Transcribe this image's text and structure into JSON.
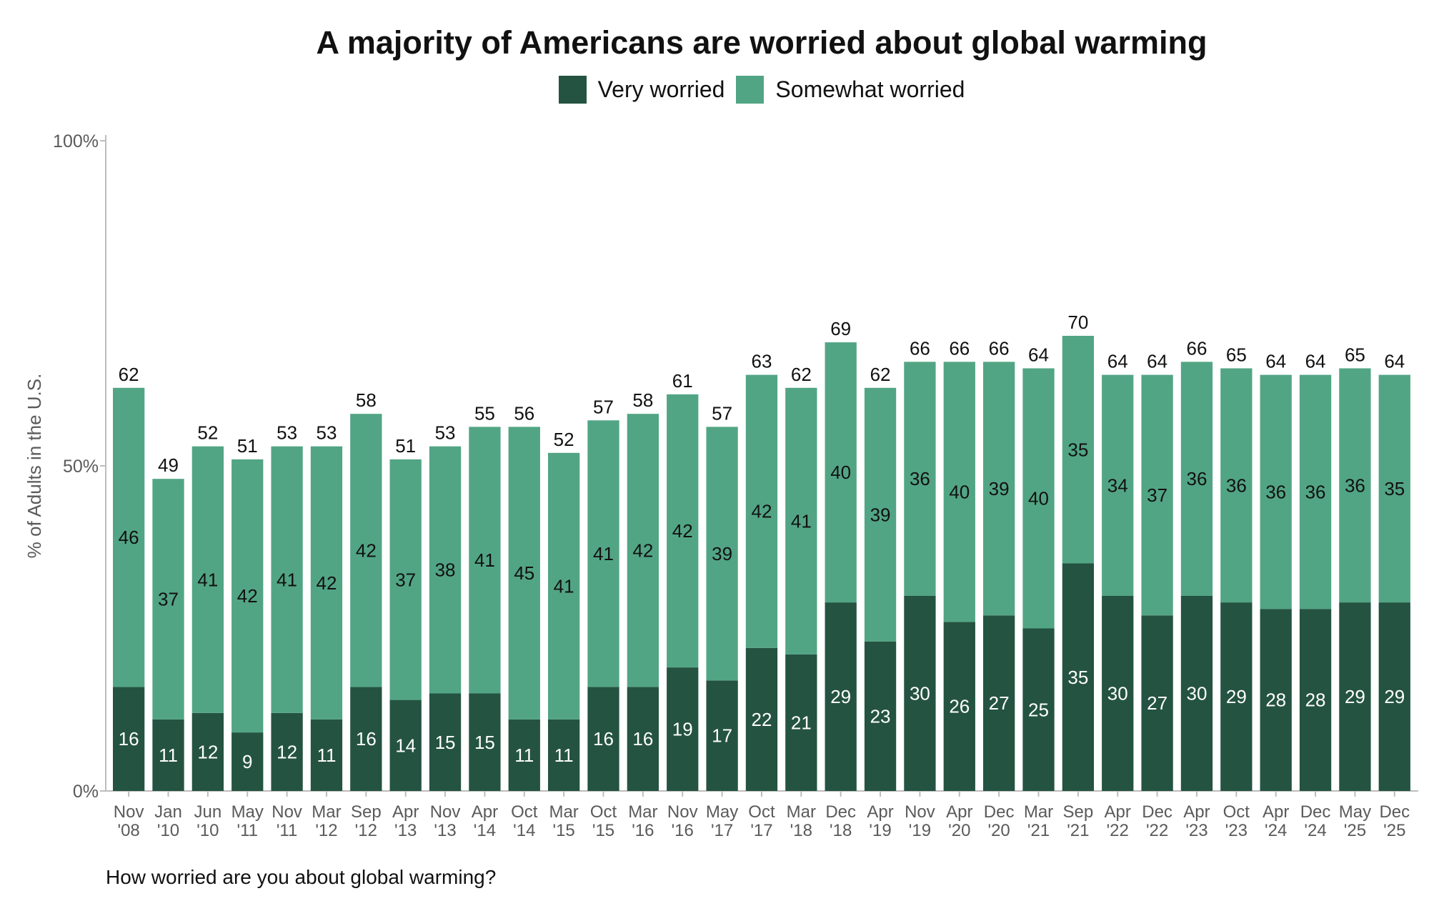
{
  "colors": {
    "very_worried": "#245342",
    "somewhat_worried": "#52a584",
    "axis": "#bdbdbd",
    "tick_text": "#5a5a5a"
  },
  "chart_data": {
    "type": "bar",
    "stacked": true,
    "title": "A majority of Americans are worried about global warming",
    "ylabel": "% of Adults in the U.S.",
    "ylim": [
      0,
      100
    ],
    "yticks": [
      "0%",
      "50%",
      "100%"
    ],
    "legend_position": "top-center",
    "grid": false,
    "footnote": "How worried are you about global warming?",
    "categories": [
      [
        "Nov",
        "'08"
      ],
      [
        "Jan",
        "'10"
      ],
      [
        "Jun",
        "'10"
      ],
      [
        "May",
        "'11"
      ],
      [
        "Nov",
        "'11"
      ],
      [
        "Mar",
        "'12"
      ],
      [
        "Sep",
        "'12"
      ],
      [
        "Apr",
        "'13"
      ],
      [
        "Nov",
        "'13"
      ],
      [
        "Apr",
        "'14"
      ],
      [
        "Oct",
        "'14"
      ],
      [
        "Mar",
        "'15"
      ],
      [
        "Oct",
        "'15"
      ],
      [
        "Mar",
        "'16"
      ],
      [
        "Nov",
        "'16"
      ],
      [
        "May",
        "'17"
      ],
      [
        "Oct",
        "'17"
      ],
      [
        "Mar",
        "'18"
      ],
      [
        "Dec",
        "'18"
      ],
      [
        "Apr",
        "'19"
      ],
      [
        "Nov",
        "'19"
      ],
      [
        "Apr",
        "'20"
      ],
      [
        "Dec",
        "'20"
      ],
      [
        "Mar",
        "'21"
      ],
      [
        "Sep",
        "'21"
      ],
      [
        "Apr",
        "'22"
      ],
      [
        "Dec",
        "'22"
      ],
      [
        "Apr",
        "'23"
      ],
      [
        "Oct",
        "'23"
      ],
      [
        "Apr",
        "'24"
      ],
      [
        "Dec",
        "'24"
      ],
      [
        "May",
        "'25"
      ],
      [
        "Dec",
        "'25"
      ]
    ],
    "series": [
      {
        "name": "Very worried",
        "values": [
          16,
          11,
          12,
          9,
          12,
          11,
          16,
          14,
          15,
          15,
          11,
          11,
          16,
          16,
          19,
          17,
          22,
          21,
          29,
          23,
          30,
          26,
          27,
          25,
          35,
          30,
          27,
          30,
          29,
          28,
          28,
          29,
          29
        ]
      },
      {
        "name": "Somewhat worried",
        "values": [
          46,
          37,
          41,
          42,
          41,
          42,
          42,
          37,
          38,
          41,
          45,
          41,
          41,
          42,
          42,
          39,
          42,
          41,
          40,
          39,
          36,
          40,
          39,
          40,
          35,
          34,
          37,
          36,
          36,
          36,
          36,
          36,
          35
        ]
      }
    ],
    "totals": [
      62,
      49,
      52,
      51,
      53,
      53,
      58,
      51,
      53,
      55,
      56,
      52,
      57,
      58,
      61,
      57,
      63,
      62,
      69,
      62,
      66,
      66,
      66,
      64,
      70,
      64,
      64,
      66,
      65,
      64,
      64,
      65,
      64
    ]
  }
}
